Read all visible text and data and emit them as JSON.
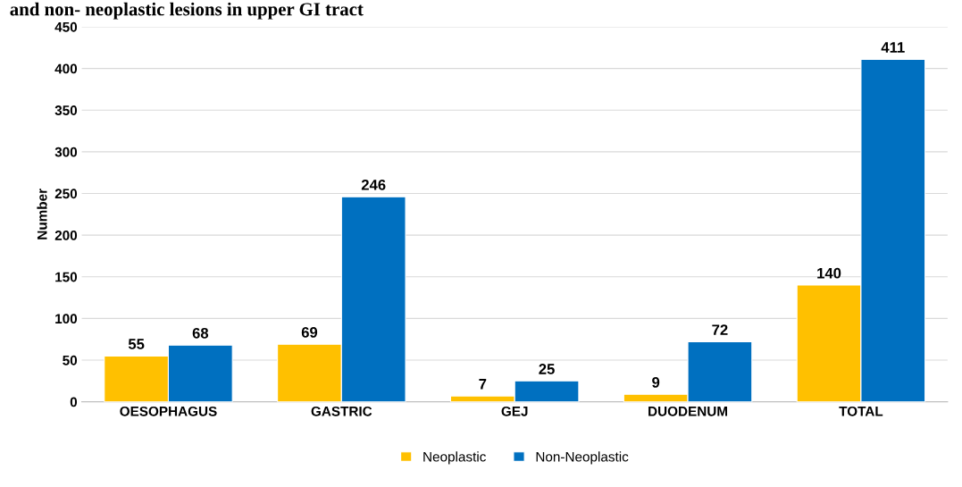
{
  "chart_data": {
    "type": "bar",
    "title": "and non- neoplastic lesions in upper GI tract",
    "ylabel": "Number",
    "categories": [
      "OESOPHAGUS",
      "GASTRIC",
      "GEJ",
      "DUODENUM",
      "TOTAL"
    ],
    "series": [
      {
        "name": "Neoplastic",
        "color": "#ffc000",
        "values": [
          55,
          69,
          7,
          9,
          140
        ]
      },
      {
        "name": "Non-Neoplastic",
        "color": "#0070c0",
        "values": [
          68,
          246,
          25,
          72,
          411
        ]
      }
    ],
    "ylim": [
      0,
      450
    ],
    "yticks": [
      0,
      50,
      100,
      150,
      200,
      250,
      300,
      350,
      400,
      450
    ],
    "grid": "y",
    "legend": "bottom",
    "data_labels": true
  }
}
